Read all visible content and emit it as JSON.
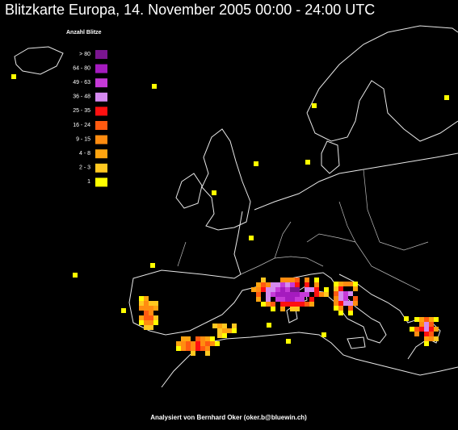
{
  "header": {
    "title": "Blitzkarte Europa,  14. November 2005  00:00 - 24:00 UTC"
  },
  "legend": {
    "title": "Anzahl Blitze",
    "items": [
      {
        "label": "> 80",
        "color": "#7a1590"
      },
      {
        "label": "64 - 80",
        "color": "#a51bbf"
      },
      {
        "label": "49 - 63",
        "color": "#c63ad8"
      },
      {
        "label": "36 - 48",
        "color": "#d58af0"
      },
      {
        "label": "25 - 35",
        "color": "#ff1010"
      },
      {
        "label": "16 - 24",
        "color": "#ff5a10"
      },
      {
        "label": "9 - 15",
        "color": "#ff8c10"
      },
      {
        "label": "4 - 8",
        "color": "#ffa410"
      },
      {
        "label": "2 - 3",
        "color": "#ffc820"
      },
      {
        "label": "1",
        "color": "#ffff00"
      }
    ]
  },
  "footer": {
    "text": "Analysiert von Bernhard Oker (oker.b@bluewin.ch)"
  }
}
